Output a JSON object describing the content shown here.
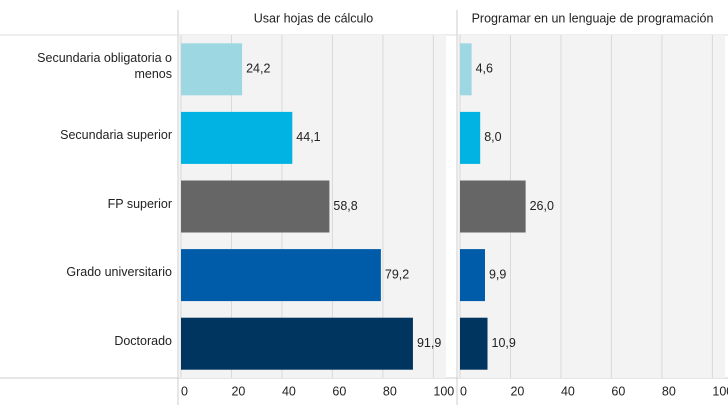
{
  "chart_data": [
    {
      "type": "bar",
      "title": "Usar hojas de cálculo",
      "categories": [
        "Secundaria obligatoria o menos",
        "Secundaria superior",
        "FP superior",
        "Grado universitario",
        "Doctorado"
      ],
      "values": [
        24.2,
        44.1,
        58.8,
        79.2,
        91.9
      ],
      "value_labels": [
        "24,2",
        "44,1",
        "58,8",
        "79,2",
        "91,9"
      ],
      "colors": [
        "#9dd7e2",
        "#00b3e3",
        "#666666",
        "#005ca8",
        "#00355f"
      ],
      "xlim": [
        0,
        105
      ],
      "xticks": [
        0,
        20,
        40,
        60,
        80,
        100
      ],
      "grid": true
    },
    {
      "type": "bar",
      "title": "Programar en un lenguaje de programación",
      "values": [
        4.6,
        8.0,
        26.0,
        9.9,
        10.9
      ],
      "value_labels": [
        "4,6",
        "8,0",
        "26,0",
        "9,9",
        "10,9"
      ],
      "colors": [
        "#9dd7e2",
        "#00b3e3",
        "#666666",
        "#005ca8",
        "#00355f"
      ],
      "xlim": [
        0,
        105
      ],
      "xticks": [
        0,
        20,
        40,
        60,
        80,
        100
      ],
      "grid": true
    }
  ]
}
